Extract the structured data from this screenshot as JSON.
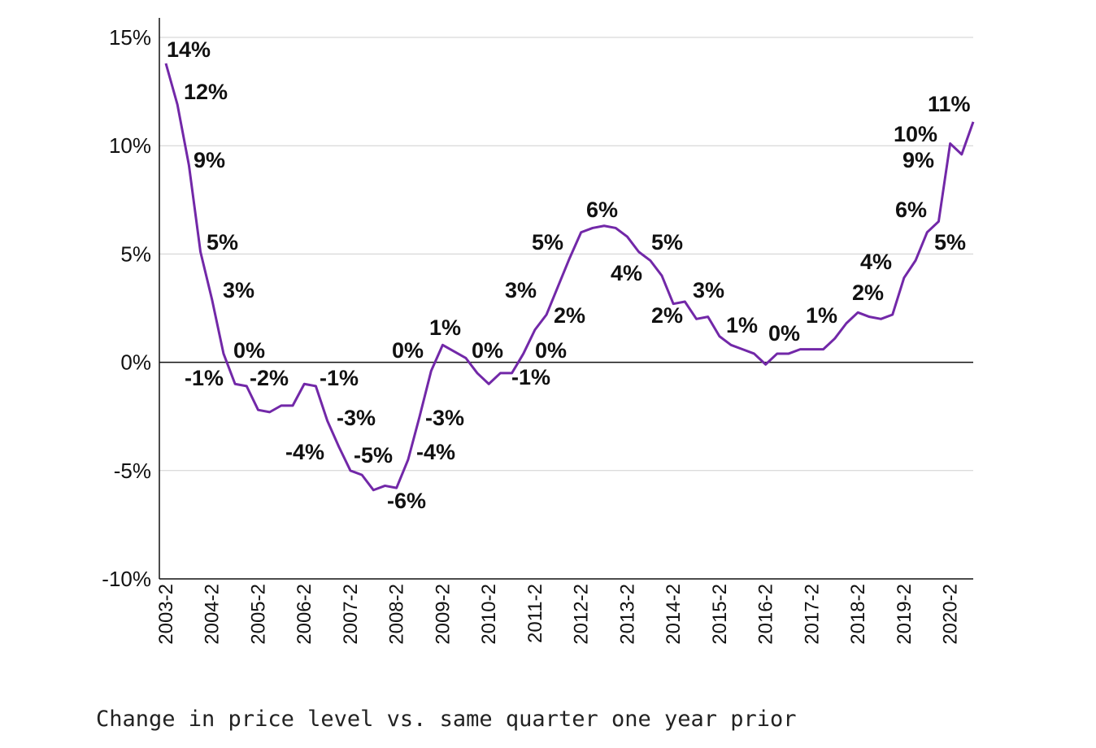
{
  "chart_data": {
    "type": "line",
    "caption": "Change in price level vs. same quarter one year prior",
    "ylim": [
      -10,
      15
    ],
    "y_ticks": [
      15,
      10,
      5,
      0,
      -5,
      -10
    ],
    "y_tick_labels": [
      "15%",
      "10%",
      "5%",
      "0%",
      "-5%",
      "-10%"
    ],
    "x_tick_labels": [
      "2003-2",
      "2004-2",
      "2005-2",
      "2006-2",
      "2007-2",
      "2008-2",
      "2009-2",
      "2010-2",
      "2011-2",
      "2012-2",
      "2013-2",
      "2014-2",
      "2015-2",
      "2016-2",
      "2017-2",
      "2018-2",
      "2019-2",
      "2020-2"
    ],
    "grid": "horizontal",
    "color": "#7228a8",
    "series": [
      {
        "values": [
          13.8,
          11.9,
          9.1,
          5.1,
          2.9,
          0.4,
          -1.0,
          -1.1,
          -2.2,
          -2.3,
          -2.0,
          -2.0,
          -1.0,
          -1.1,
          -2.7,
          -3.9,
          -5.0,
          -5.2,
          -5.9,
          -5.7,
          -5.8,
          -4.5,
          -2.5,
          -0.4,
          0.8,
          0.5,
          0.2,
          -0.5,
          -1.0,
          -0.5,
          -0.5,
          0.4,
          1.5,
          2.2,
          3.5,
          4.8,
          6.0,
          6.2,
          6.3,
          6.2,
          5.8,
          5.1,
          4.7,
          4.0,
          2.7,
          2.8,
          2.0,
          2.1,
          1.2,
          0.8,
          0.6,
          0.4,
          -0.1,
          0.4,
          0.4,
          0.6,
          0.6,
          0.6,
          1.1,
          1.8,
          2.3,
          2.1,
          2.0,
          2.2,
          3.9,
          4.7,
          6.0,
          6.5,
          10.1,
          9.6,
          11.1
        ]
      }
    ],
    "data_labels": [
      "14%",
      "12%",
      "9%",
      "5%",
      "3%",
      "0%",
      "-1%",
      "-2%",
      "-1%",
      "-4%",
      "-3%",
      "-5%",
      "-6%",
      "-4%",
      "-3%",
      "0%",
      "1%",
      "0%",
      "-1%",
      "0%",
      "3%",
      "5%",
      "2%",
      "6%",
      "4%",
      "5%",
      "2%",
      "3%",
      "1%",
      "0%",
      "1%",
      "2%",
      "4%",
      "6%",
      "5%",
      "10%",
      "9%",
      "11%"
    ]
  }
}
